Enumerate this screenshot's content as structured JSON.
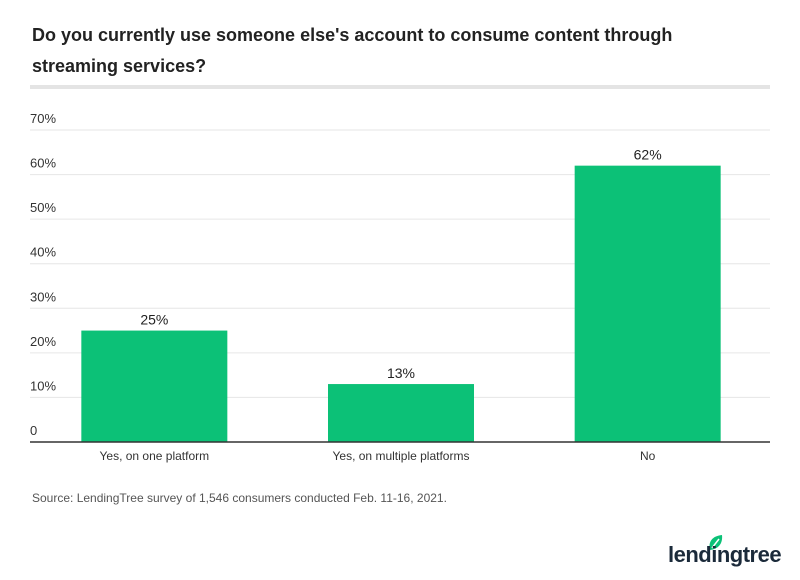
{
  "chart_data": {
    "type": "bar",
    "title": "Do you currently use someone else's account to consume content through streaming services?",
    "categories": [
      "Yes, on one platform",
      "Yes, on multiple platforms",
      "No"
    ],
    "values": [
      25,
      13,
      62
    ],
    "data_labels": [
      "25%",
      "13%",
      "62%"
    ],
    "ylim": [
      0,
      70
    ],
    "yticks": [
      0,
      10,
      20,
      30,
      40,
      50,
      60,
      70
    ],
    "ytick_labels": [
      "0",
      "10%",
      "20%",
      "30%",
      "40%",
      "50%",
      "60%",
      "70%"
    ],
    "grid": true,
    "bar_color": "#0cc177",
    "xlabel": "",
    "ylabel": ""
  },
  "source": "Source: LendingTree survey of 1,546 consumers conducted Feb. 11-16, 2021.",
  "logo": {
    "text": "lendingtree",
    "leaf_color": "#0cc177"
  }
}
